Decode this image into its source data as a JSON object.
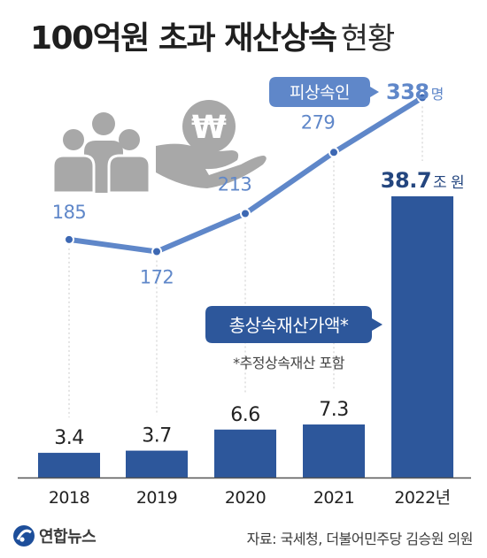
{
  "title": {
    "bold": "100억원 초과 재산상속",
    "light": "현황"
  },
  "chart_data": {
    "type": "bar",
    "categories": [
      "2018",
      "2019",
      "2020",
      "2021",
      "2022년"
    ],
    "series": [
      {
        "name": "총상속재산가액*",
        "type": "bar",
        "values": [
          3.4,
          3.7,
          6.6,
          7.3,
          38.7
        ],
        "value_labels": [
          "3.4",
          "3.7",
          "6.6",
          "7.3",
          "38.7"
        ],
        "unit": "조 원",
        "color": "#2d579b"
      },
      {
        "name": "피상속인",
        "type": "line",
        "values": [
          185,
          172,
          213,
          279,
          338
        ],
        "value_labels": [
          "185",
          "172",
          "213",
          "279",
          "338"
        ],
        "unit": "명",
        "color": "#5f87c9"
      }
    ],
    "footnote": "*추정상속재산 포함",
    "grid": false
  },
  "colors": {
    "bar": "#2d579b",
    "line": "#5f87c9",
    "lineLabel": "#5f87c9",
    "icon": "#a8a8a8"
  },
  "footer": {
    "brand": "연합뉴스",
    "source": "자료: 국세청, 더불어민주당 김승원 의원"
  }
}
